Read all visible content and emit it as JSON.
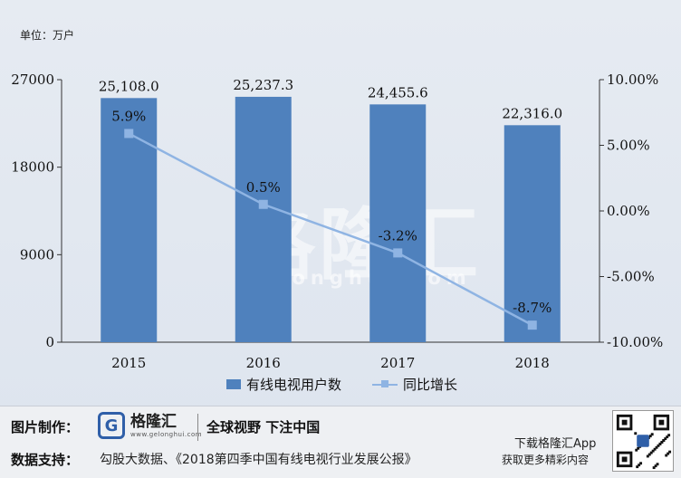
{
  "unit_label": "单位：万户",
  "chart_data": {
    "type": "bar+line",
    "categories": [
      "2015",
      "2016",
      "2017",
      "2018"
    ],
    "series": [
      {
        "name": "有线电视用户数",
        "type": "bar",
        "axis": "left",
        "values": [
          25108.0,
          25237.3,
          24455.6,
          22316.0
        ],
        "labels": [
          "25,108.0",
          "25,237.3",
          "24,455.6",
          "22,316.0"
        ],
        "color": "#4f81bd"
      },
      {
        "name": "同比增长",
        "type": "line",
        "axis": "right",
        "values": [
          5.9,
          0.5,
          -3.2,
          -8.7
        ],
        "labels": [
          "5.9%",
          "0.5%",
          "-3.2%",
          "-8.7%"
        ],
        "color": "#8fb4e3"
      }
    ],
    "y_left": {
      "min": 0,
      "max": 27000,
      "ticks": [
        0,
        9000,
        18000,
        27000
      ],
      "tick_labels": [
        "0",
        "9000",
        "18000",
        "27000"
      ]
    },
    "y_right": {
      "min": -10,
      "max": 10,
      "ticks": [
        -10,
        -5,
        0,
        5,
        10
      ],
      "tick_labels": [
        "-10.00%",
        "-5.00%",
        "0.00%",
        "5.00%",
        "10.00%"
      ]
    },
    "grid": false,
    "legend_position": "bottom"
  },
  "watermark": {
    "text": "格隆汇",
    "domain": "gelonghui.com"
  },
  "footer": {
    "credit_label": "图片制作：",
    "logo_text": "格隆汇",
    "logo_domain": "www.gelonghui.com",
    "slogan": "全球视野 下注中国",
    "source_label": "数据支持：",
    "source_text": "勾股大数据、《2018第四季中国有线电视行业发展公报》",
    "app_label": "下载格隆汇App",
    "source_tail": "获取更多精彩内容"
  },
  "colors": {
    "bar": "#4f81bd",
    "line": "#8fb4e3",
    "background": "#e6ebf2"
  }
}
